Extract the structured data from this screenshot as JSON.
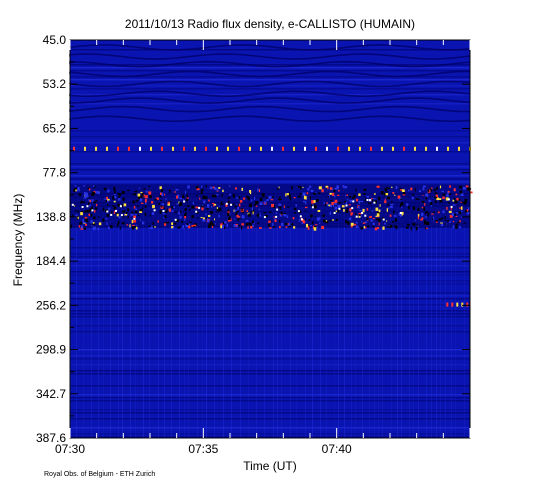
{
  "chart_data": {
    "type": "heatmap",
    "title": "2011/10/13  Radio flux density, e-CALLISTO (HUMAIN)",
    "xlabel": "Time (UT)",
    "ylabel": "Frequency (MHz)",
    "xlim": [
      "07:30",
      "07:45"
    ],
    "x_ticks": [
      "07:30",
      "07:35",
      "07:40"
    ],
    "y_ticks": [
      "45.0",
      "53.2",
      "65.2",
      "77.8",
      "138.8",
      "184.4",
      "256.2",
      "298.9",
      "342.7",
      "387.6"
    ],
    "ylim": [
      45.0,
      387.6
    ],
    "y_axis_direction": "increasing downward",
    "colormap": [
      "#000066",
      "#0a14b4",
      "#2833e6",
      "#ff3030",
      "#ffe040"
    ],
    "background_color": "#0a14b0",
    "features": [
      {
        "type": "intense emission band",
        "freq_range_mhz": [
          95,
          150
        ],
        "time_range": [
          "07:30",
          "07:45"
        ]
      },
      {
        "type": "periodic spikes",
        "freq_mhz": 71,
        "time_range": [
          "07:30",
          "07:45"
        ]
      },
      {
        "type": "bright dots",
        "freq_mhz": 255,
        "time_range": [
          "07:44",
          "07:45"
        ]
      }
    ],
    "credit": "Royal Obs. of Belgium - ETH Zurich"
  }
}
